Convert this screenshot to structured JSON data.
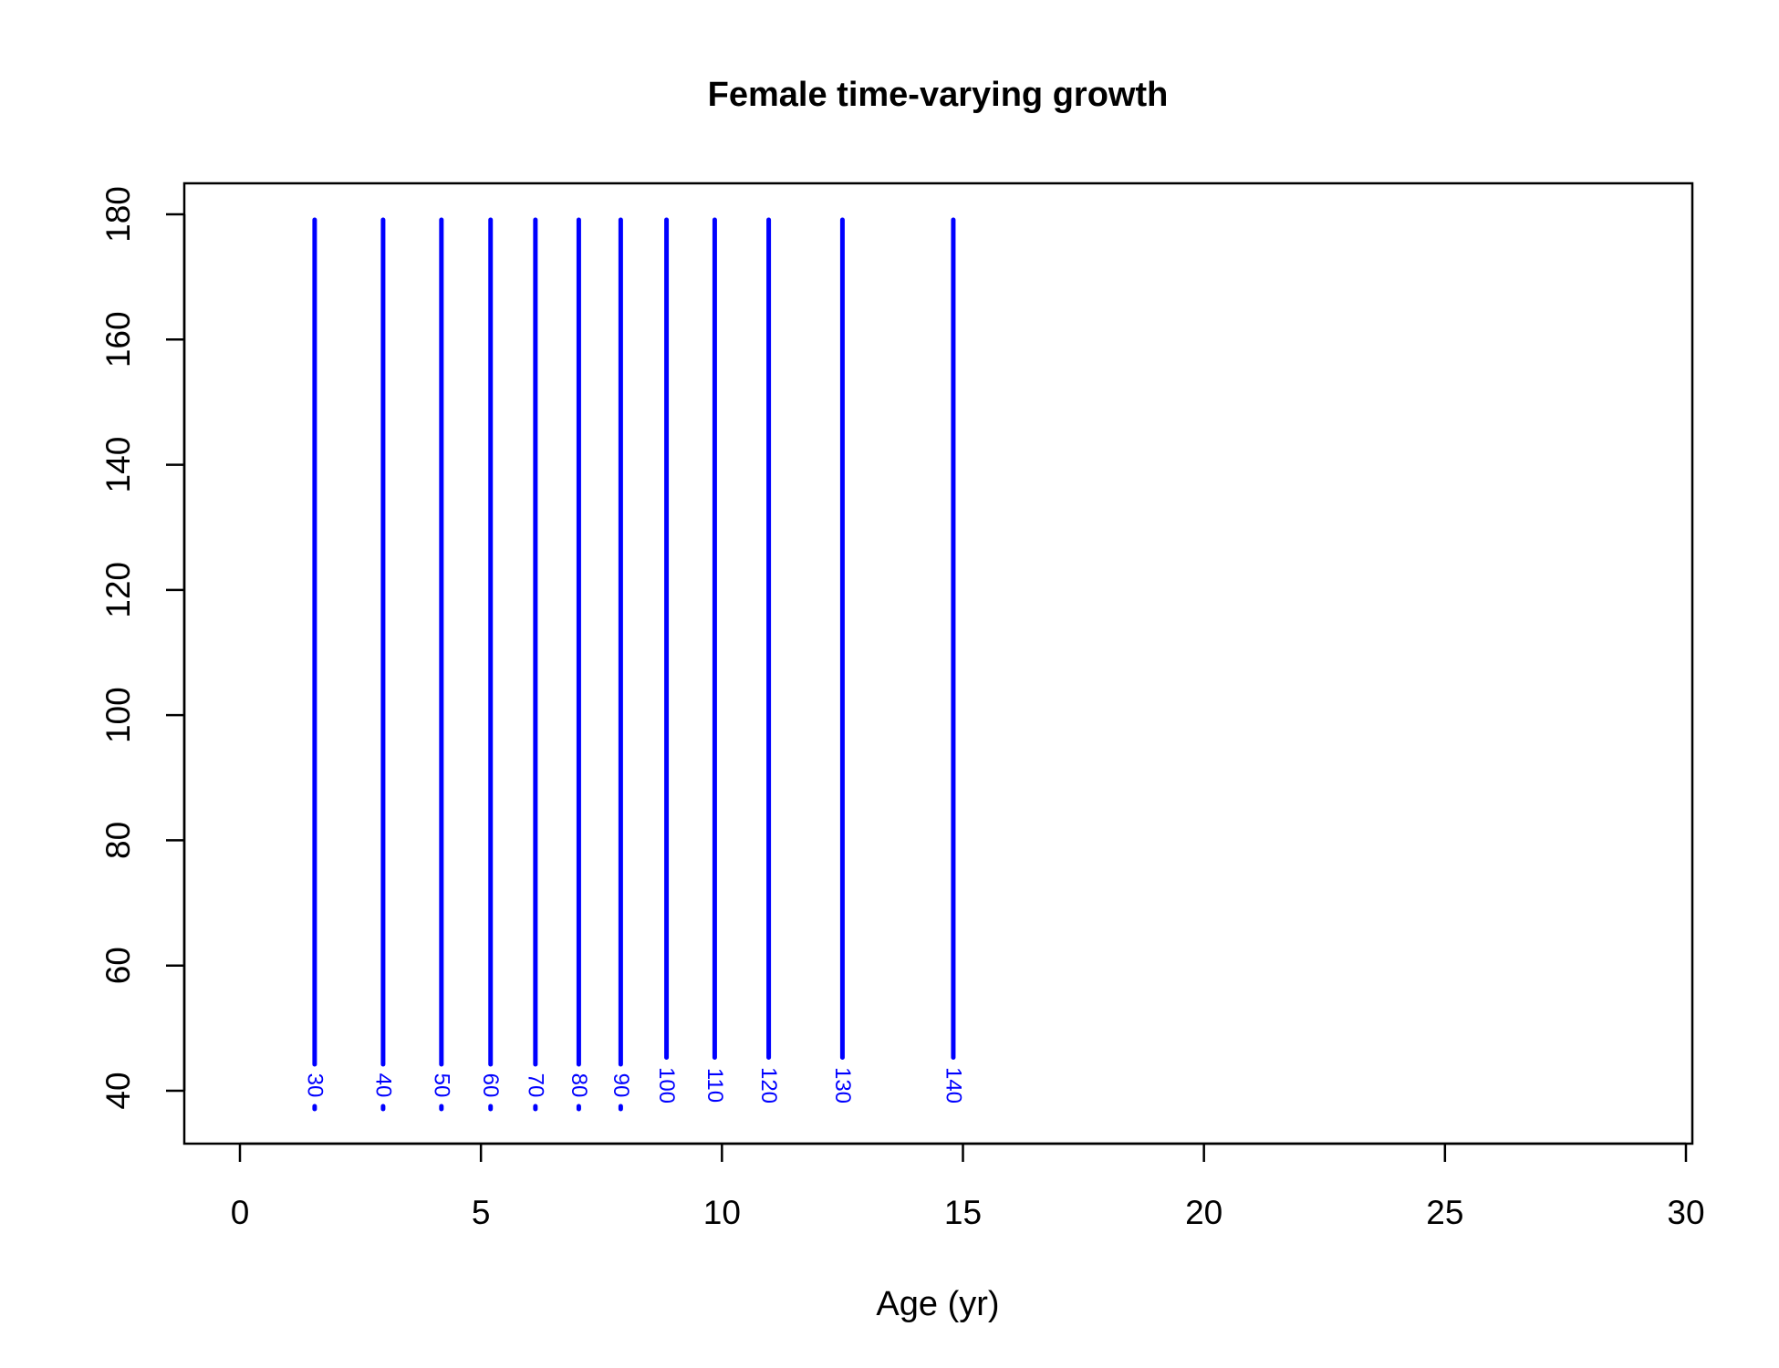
{
  "chart_data": {
    "type": "line",
    "title": "Female time-varying growth",
    "xlabel": "Age (yr)",
    "ylabel": "",
    "xlim": [
      0,
      30
    ],
    "ylim": [
      40,
      180
    ],
    "x_ticks": [
      "0",
      "5",
      "10",
      "15",
      "20",
      "25",
      "30"
    ],
    "y_ticks": [
      "40",
      "60",
      "80",
      "100",
      "120",
      "140",
      "160",
      "180"
    ],
    "grid": false,
    "legend": "none",
    "line_color": "#0000ff",
    "contours": [
      {
        "label": "30",
        "age": 1.55
      },
      {
        "label": "40",
        "age": 2.97
      },
      {
        "label": "50",
        "age": 4.18
      },
      {
        "label": "60",
        "age": 5.2
      },
      {
        "label": "70",
        "age": 6.13
      },
      {
        "label": "80",
        "age": 7.03
      },
      {
        "label": "90",
        "age": 7.9
      },
      {
        "label": "100",
        "age": 8.85
      },
      {
        "label": "110",
        "age": 9.85
      },
      {
        "label": "120",
        "age": 10.97
      },
      {
        "label": "130",
        "age": 12.5
      },
      {
        "label": "140",
        "age": 14.8
      }
    ]
  }
}
